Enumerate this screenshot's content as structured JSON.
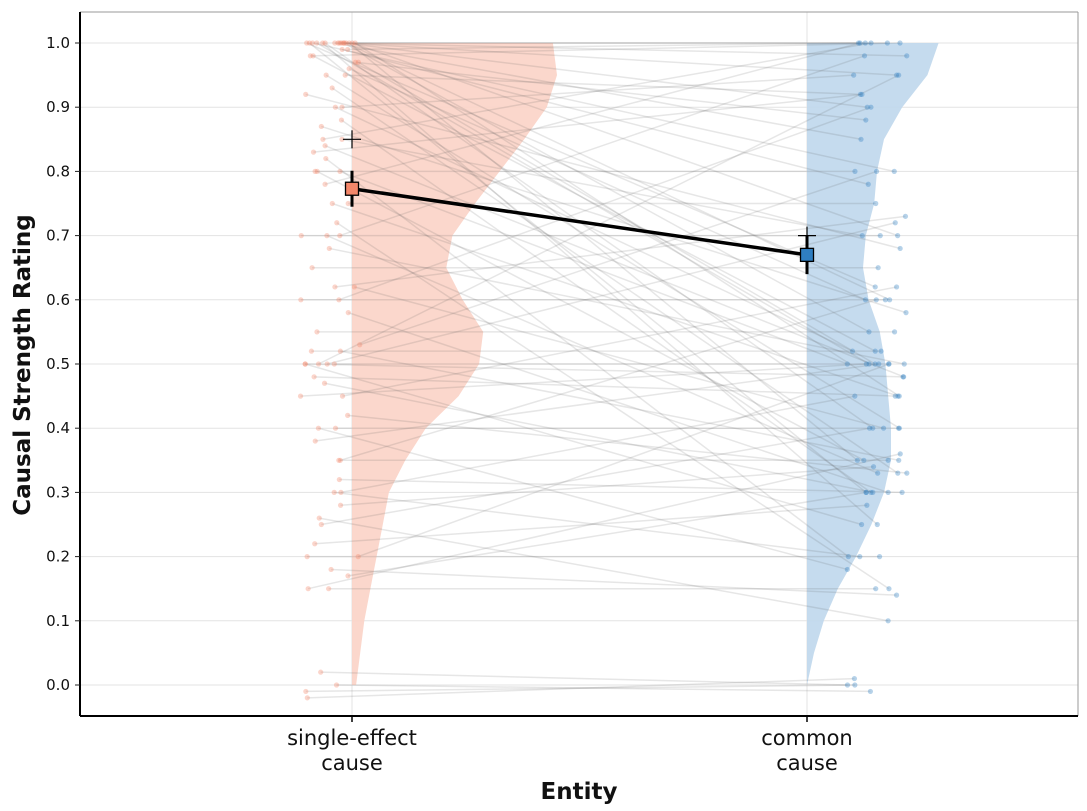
{
  "chart_data": {
    "type": "scatter",
    "title": "",
    "xlabel": "Entity",
    "ylabel": "Causal Strength Rating",
    "ylim": [
      -0.05,
      1.05
    ],
    "yticks": [
      0.0,
      0.1,
      0.2,
      0.3,
      0.4,
      0.5,
      0.6,
      0.7,
      0.8,
      0.9,
      1.0
    ],
    "ytick_labels": [
      "0.0",
      "0.1",
      "0.2",
      "0.3",
      "0.4",
      "0.5",
      "0.6",
      "0.7",
      "0.8",
      "0.9",
      "1.0"
    ],
    "grid": true,
    "legend": "none",
    "categories": [
      {
        "lines": [
          "single-effect",
          "cause"
        ]
      },
      {
        "lines": [
          "common",
          "cause"
        ]
      }
    ],
    "series": [
      {
        "color": "#f4876a",
        "violin_color": "#fbd3c7",
        "mean": 0.773,
        "ci": [
          0.745,
          0.801
        ],
        "median": 0.85,
        "density": [
          [
            0.0,
            0.02
          ],
          [
            0.05,
            0.04
          ],
          [
            0.1,
            0.06
          ],
          [
            0.15,
            0.09
          ],
          [
            0.2,
            0.12
          ],
          [
            0.25,
            0.15
          ],
          [
            0.3,
            0.18
          ],
          [
            0.35,
            0.26
          ],
          [
            0.4,
            0.36
          ],
          [
            0.45,
            0.52
          ],
          [
            0.5,
            0.62
          ],
          [
            0.55,
            0.64
          ],
          [
            0.6,
            0.54
          ],
          [
            0.65,
            0.46
          ],
          [
            0.7,
            0.49
          ],
          [
            0.75,
            0.6
          ],
          [
            0.8,
            0.72
          ],
          [
            0.85,
            0.84
          ],
          [
            0.9,
            0.95
          ],
          [
            0.95,
            1.0
          ],
          [
            1.0,
            0.98
          ]
        ]
      },
      {
        "color": "#2f7ec1",
        "violin_color": "#bfd7ec",
        "mean": 0.67,
        "ci": [
          0.64,
          0.7
        ],
        "median": 0.7,
        "density": [
          [
            0.0,
            0.0
          ],
          [
            0.05,
            0.05
          ],
          [
            0.1,
            0.12
          ],
          [
            0.15,
            0.22
          ],
          [
            0.2,
            0.35
          ],
          [
            0.25,
            0.46
          ],
          [
            0.3,
            0.55
          ],
          [
            0.35,
            0.6
          ],
          [
            0.4,
            0.6
          ],
          [
            0.45,
            0.58
          ],
          [
            0.5,
            0.56
          ],
          [
            0.55,
            0.52
          ],
          [
            0.6,
            0.44
          ],
          [
            0.65,
            0.4
          ],
          [
            0.7,
            0.42
          ],
          [
            0.75,
            0.48
          ],
          [
            0.8,
            0.5
          ],
          [
            0.85,
            0.55
          ],
          [
            0.9,
            0.68
          ],
          [
            0.95,
            0.86
          ],
          [
            1.0,
            0.94
          ]
        ]
      }
    ],
    "pairs": [
      [
        1.0,
        1.0
      ],
      [
        1.0,
        0.98
      ],
      [
        1.0,
        1.0
      ],
      [
        0.98,
        1.0
      ],
      [
        1.0,
        0.95
      ],
      [
        1.0,
        0.9
      ],
      [
        0.99,
        1.0
      ],
      [
        1.0,
        0.85
      ],
      [
        1.0,
        0.8
      ],
      [
        1.0,
        0.7
      ],
      [
        1.0,
        0.62
      ],
      [
        1.0,
        0.55
      ],
      [
        1.0,
        0.5
      ],
      [
        1.0,
        0.45
      ],
      [
        1.0,
        0.4
      ],
      [
        1.0,
        0.35
      ],
      [
        1.0,
        0.3
      ],
      [
        1.0,
        0.25
      ],
      [
        0.97,
        0.5
      ],
      [
        0.95,
        0.92
      ],
      [
        0.95,
        0.4
      ],
      [
        0.96,
        0.6
      ],
      [
        0.93,
        0.33
      ],
      [
        0.9,
        0.95
      ],
      [
        0.9,
        0.52
      ],
      [
        0.88,
        0.3
      ],
      [
        0.85,
        0.7
      ],
      [
        0.85,
        1.0
      ],
      [
        0.84,
        0.48
      ],
      [
        0.82,
        0.2
      ],
      [
        0.8,
        0.8
      ],
      [
        0.8,
        0.5
      ],
      [
        0.8,
        0.35
      ],
      [
        0.78,
        1.0
      ],
      [
        0.75,
        0.75
      ],
      [
        0.75,
        0.45
      ],
      [
        0.72,
        0.15
      ],
      [
        0.7,
        0.7
      ],
      [
        0.7,
        0.33
      ],
      [
        0.7,
        0.98
      ],
      [
        0.68,
        0.5
      ],
      [
        0.65,
        0.65
      ],
      [
        0.62,
        0.4
      ],
      [
        0.6,
        0.6
      ],
      [
        0.6,
        0.9
      ],
      [
        0.58,
        0.3
      ],
      [
        0.55,
        0.55
      ],
      [
        0.53,
        0.8
      ],
      [
        0.52,
        0.52
      ],
      [
        0.52,
        0.35
      ],
      [
        0.5,
        0.5
      ],
      [
        0.5,
        0.48
      ],
      [
        0.5,
        0.25
      ],
      [
        0.5,
        0.72
      ],
      [
        0.5,
        0.95
      ],
      [
        0.48,
        0.45
      ],
      [
        0.47,
        0.3
      ],
      [
        0.45,
        0.5
      ],
      [
        0.45,
        0.62
      ],
      [
        0.42,
        0.33
      ],
      [
        0.4,
        0.4
      ],
      [
        0.4,
        0.18
      ],
      [
        0.38,
        0.5
      ],
      [
        0.35,
        0.35
      ],
      [
        0.35,
        0.6
      ],
      [
        0.32,
        0.3
      ],
      [
        0.3,
        0.45
      ],
      [
        0.3,
        0.2
      ],
      [
        0.28,
        0.34
      ],
      [
        0.26,
        0.1
      ],
      [
        0.25,
        0.4
      ],
      [
        0.22,
        0.28
      ],
      [
        0.2,
        0.2
      ],
      [
        0.2,
        0.5
      ],
      [
        0.18,
        0.14
      ],
      [
        0.17,
        0.3
      ],
      [
        0.15,
        0.15
      ],
      [
        0.15,
        0.36
      ],
      [
        0.02,
        0.0
      ],
      [
        0.0,
        -0.01
      ],
      [
        -0.01,
        0.0
      ],
      [
        -0.02,
        0.01
      ],
      [
        1.0,
        0.6
      ],
      [
        0.99,
        0.78
      ],
      [
        0.98,
        0.52
      ],
      [
        0.97,
        0.88
      ],
      [
        0.92,
        0.68
      ],
      [
        0.87,
        0.58
      ],
      [
        0.83,
        0.92
      ],
      [
        0.62,
        0.73
      ]
    ]
  }
}
